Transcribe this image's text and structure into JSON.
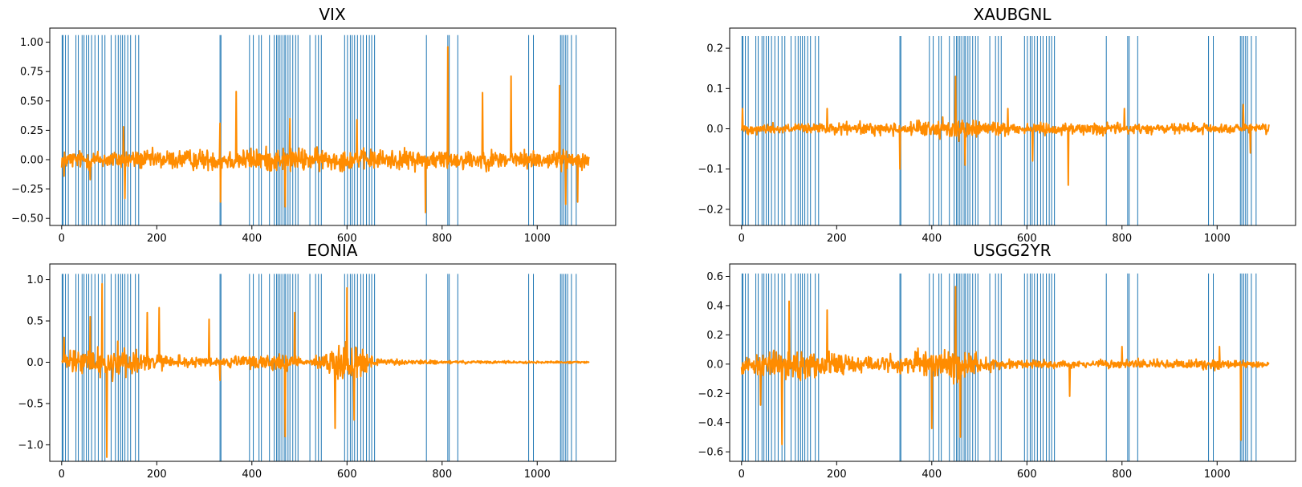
{
  "colors": {
    "event_bars": "#1f77b4",
    "series_line": "#ff8c00",
    "axes": "#000000",
    "background": "#ffffff"
  },
  "event_x": [
    1,
    3,
    8,
    14,
    30,
    35,
    43,
    47,
    52,
    57,
    63,
    70,
    77,
    85,
    91,
    104,
    113,
    119,
    124,
    128,
    133,
    139,
    145,
    155,
    162,
    333,
    335,
    395,
    403,
    415,
    420,
    437,
    447,
    452,
    455,
    459,
    463,
    468,
    471,
    476,
    480,
    486,
    492,
    497,
    522,
    534,
    540,
    546,
    595,
    601,
    607,
    611,
    616,
    622,
    629,
    634,
    641,
    647,
    652,
    658,
    767,
    812,
    815,
    833,
    982,
    992,
    1049,
    1052,
    1056,
    1060,
    1064,
    1072,
    1082
  ],
  "chart_data": [
    {
      "type": "line",
      "title": "VIX",
      "xlim": [
        -25,
        1165
      ],
      "ylim": [
        -0.56,
        1.12
      ],
      "xticks": [
        0,
        200,
        400,
        600,
        800,
        1000
      ],
      "yticks": [
        -0.5,
        -0.25,
        0.0,
        0.25,
        0.5,
        0.75,
        1.0
      ],
      "ytick_labels": [
        "−0.50",
        "−0.25",
        "0.00",
        "0.25",
        "0.50",
        "0.75",
        "1.00"
      ],
      "n_points": 1110,
      "noise_amplitude": [
        [
          0,
          0.11
        ],
        [
          330,
          0.13
        ],
        [
          460,
          0.15
        ],
        [
          600,
          0.13
        ],
        [
          1110,
          0.11
        ]
      ],
      "peaks": [
        [
          5,
          -0.14
        ],
        [
          60,
          -0.17
        ],
        [
          130,
          0.28
        ],
        [
          133,
          -0.33
        ],
        [
          333,
          0.31
        ],
        [
          334,
          -0.36
        ],
        [
          367,
          0.58
        ],
        [
          470,
          -0.4
        ],
        [
          480,
          0.35
        ],
        [
          621,
          0.34
        ],
        [
          765,
          -0.45
        ],
        [
          812,
          0.96
        ],
        [
          885,
          0.57
        ],
        [
          945,
          0.71
        ],
        [
          1047,
          0.63
        ],
        [
          1060,
          -0.38
        ],
        [
          1085,
          -0.36
        ]
      ],
      "bar_top": 1.06,
      "grid": false,
      "legend": "none"
    },
    {
      "type": "line",
      "title": "XAUBGNL",
      "xlim": [
        -25,
        1165
      ],
      "ylim": [
        -0.24,
        0.25
      ],
      "xticks": [
        0,
        200,
        400,
        600,
        800,
        1000
      ],
      "yticks": [
        -0.2,
        -0.1,
        0.0,
        0.1,
        0.2
      ],
      "ytick_labels": [
        "−0.2",
        "−0.1",
        "0.0",
        "0.1",
        "0.2"
      ],
      "n_points": 1110,
      "noise_amplitude": [
        [
          0,
          0.018
        ],
        [
          330,
          0.022
        ],
        [
          460,
          0.035
        ],
        [
          560,
          0.022
        ],
        [
          1110,
          0.018
        ]
      ],
      "peaks": [
        [
          2,
          0.05
        ],
        [
          180,
          0.05
        ],
        [
          333,
          -0.1
        ],
        [
          450,
          0.13
        ],
        [
          470,
          -0.09
        ],
        [
          560,
          0.05
        ],
        [
          612,
          -0.08
        ],
        [
          687,
          -0.14
        ],
        [
          805,
          0.05
        ],
        [
          1055,
          0.06
        ],
        [
          1070,
          -0.06
        ]
      ],
      "bar_top": 0.23,
      "grid": false,
      "legend": "none"
    },
    {
      "type": "line",
      "title": "EONIA",
      "xlim": [
        -25,
        1165
      ],
      "ylim": [
        -1.2,
        1.19
      ],
      "xticks": [
        0,
        200,
        400,
        600,
        800,
        1000
      ],
      "yticks": [
        -1.0,
        -0.5,
        0.0,
        0.5,
        1.0
      ],
      "ytick_labels": [
        "−1.0",
        "−0.5",
        "0.0",
        "0.5",
        "1.0"
      ],
      "n_points": 1110,
      "noise_amplitude": [
        [
          0,
          0.15
        ],
        [
          100,
          0.35
        ],
        [
          180,
          0.16
        ],
        [
          300,
          0.07
        ],
        [
          460,
          0.17
        ],
        [
          520,
          0.03
        ],
        [
          590,
          0.35
        ],
        [
          680,
          0.05
        ],
        [
          800,
          0.03
        ],
        [
          1110,
          0.015
        ]
      ],
      "peaks": [
        [
          5,
          0.3
        ],
        [
          60,
          0.55
        ],
        [
          85,
          0.95
        ],
        [
          95,
          -1.15
        ],
        [
          180,
          0.6
        ],
        [
          205,
          0.66
        ],
        [
          310,
          0.52
        ],
        [
          333,
          -0.22
        ],
        [
          470,
          -0.9
        ],
        [
          490,
          0.6
        ],
        [
          575,
          -0.8
        ],
        [
          600,
          0.9
        ],
        [
          615,
          -0.7
        ]
      ],
      "bar_top": 1.07,
      "grid": false,
      "legend": "none"
    },
    {
      "type": "line",
      "title": "USGG2YR",
      "xlim": [
        -25,
        1165
      ],
      "ylim": [
        -0.665,
        0.685
      ],
      "xticks": [
        0,
        200,
        400,
        600,
        800,
        1000
      ],
      "yticks": [
        -0.6,
        -0.4,
        -0.2,
        0.0,
        0.2,
        0.4,
        0.6
      ],
      "ytick_labels": [
        "−0.6",
        "−0.4",
        "−0.2",
        "0.0",
        "0.2",
        "0.4",
        "0.6"
      ],
      "n_points": 1110,
      "noise_amplitude": [
        [
          0,
          0.12
        ],
        [
          100,
          0.14
        ],
        [
          300,
          0.08
        ],
        [
          450,
          0.17
        ],
        [
          550,
          0.05
        ],
        [
          700,
          0.035
        ],
        [
          1000,
          0.05
        ],
        [
          1110,
          0.02
        ]
      ],
      "peaks": [
        [
          40,
          -0.28
        ],
        [
          85,
          -0.55
        ],
        [
          100,
          0.43
        ],
        [
          180,
          0.37
        ],
        [
          400,
          -0.44
        ],
        [
          450,
          0.53
        ],
        [
          460,
          -0.5
        ],
        [
          690,
          -0.22
        ],
        [
          800,
          0.12
        ],
        [
          1005,
          0.12
        ],
        [
          1050,
          -0.52
        ],
        [
          1095,
          -0.02
        ]
      ],
      "bar_top": 0.62,
      "grid": false,
      "legend": "none"
    }
  ]
}
